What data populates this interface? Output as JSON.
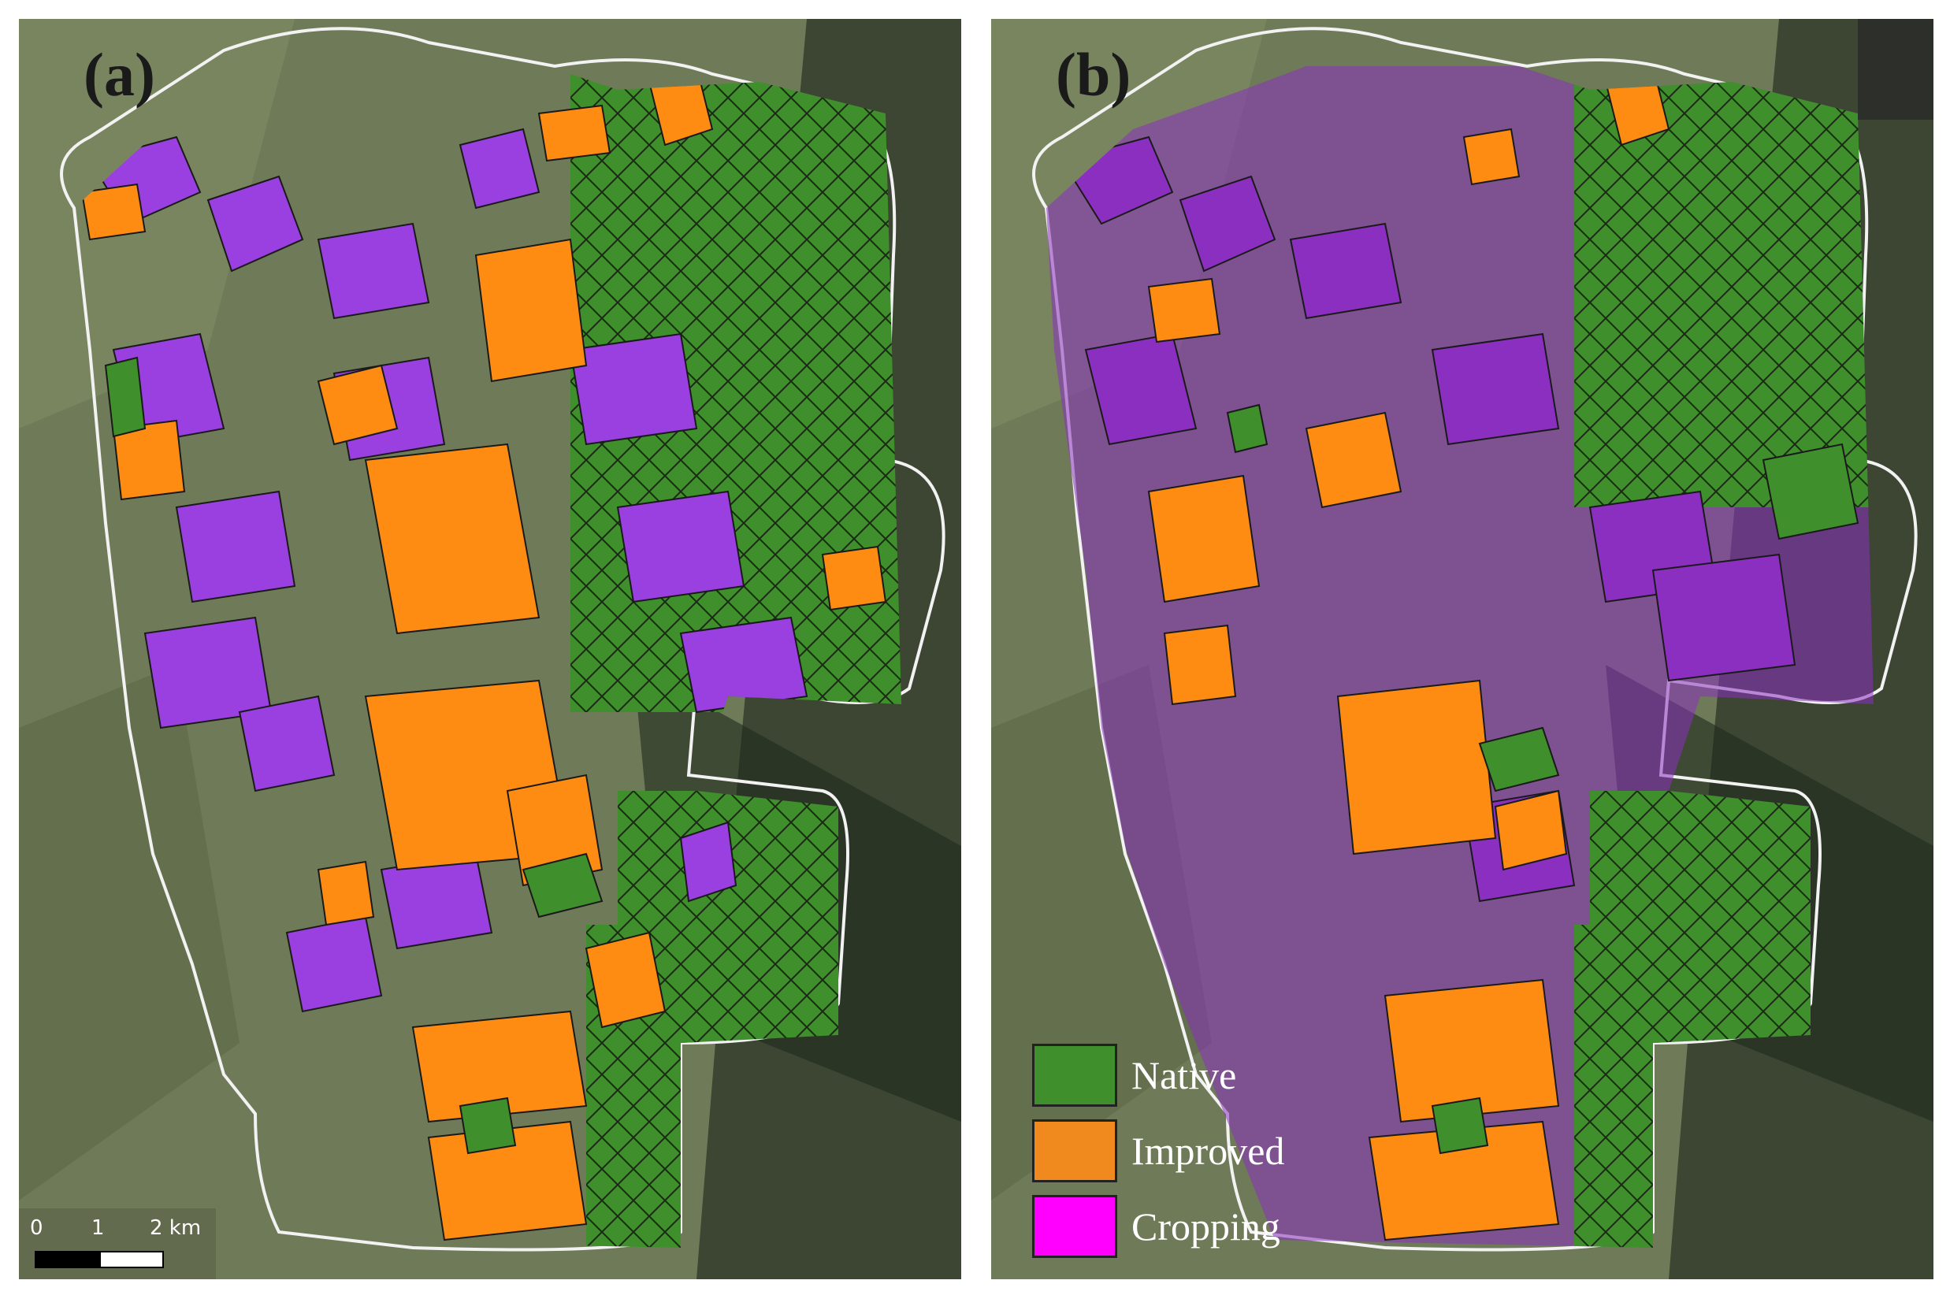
{
  "panels": [
    {
      "label": "(a)"
    },
    {
      "label": "(b)"
    }
  ],
  "legend": {
    "items": [
      {
        "label": "Native",
        "color": "#3f8f2c"
      },
      {
        "label": "Improved",
        "color": "#f08a1e"
      },
      {
        "label": "Cropping",
        "color": "#ff00ff"
      }
    ]
  },
  "scale_bar": {
    "ticks": [
      "0",
      "1",
      "2 km"
    ]
  },
  "colors": {
    "native": "#3f8f2c",
    "improved": "#ff8c12",
    "cropping": "#9a3fe0",
    "cropping_b": "#8a2fbf",
    "boundary": "#f2f2f2"
  },
  "icons": {
    "north_arrow": "north-arrow-icon"
  }
}
